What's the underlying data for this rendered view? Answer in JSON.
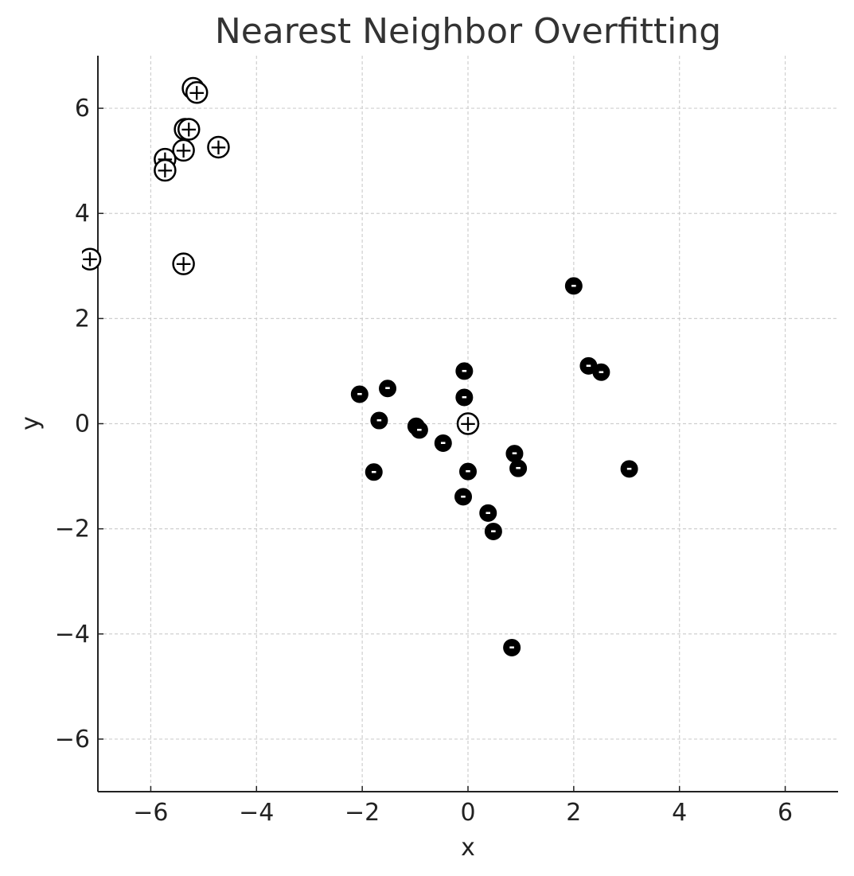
{
  "chart_data": {
    "type": "scatter",
    "title": "Nearest Neighbor Overfitting",
    "xlabel": "x",
    "ylabel": "y",
    "xlim": [
      -7,
      7
    ],
    "ylim": [
      -7,
      7
    ],
    "grid": true,
    "x_ticks": [
      -6,
      -4,
      -2,
      0,
      2,
      4,
      6
    ],
    "y_ticks": [
      -6,
      -4,
      -2,
      0,
      2,
      4,
      6
    ],
    "x_tick_labels": [
      "−6",
      "−4",
      "−2",
      "0",
      "2",
      "4",
      "6"
    ],
    "y_tick_labels": [
      "−6",
      "−4",
      "−2",
      "0",
      "2",
      "4",
      "6"
    ],
    "series": [
      {
        "name": "positive",
        "marker_text": "+",
        "marker_style": "open-circle",
        "points": [
          {
            "x": -5.2,
            "y": 6.38
          },
          {
            "x": -5.13,
            "y": 6.3
          },
          {
            "x": -5.35,
            "y": 5.6
          },
          {
            "x": -5.28,
            "y": 5.6
          },
          {
            "x": -4.72,
            "y": 5.26
          },
          {
            "x": -5.38,
            "y": 5.2
          },
          {
            "x": -5.73,
            "y": 5.03
          },
          {
            "x": -5.73,
            "y": 4.82
          },
          {
            "x": -5.38,
            "y": 3.04
          },
          {
            "x": -7.15,
            "y": 3.13
          },
          {
            "x": 0.0,
            "y": 0.0
          }
        ]
      },
      {
        "name": "negative",
        "marker_text": "-",
        "marker_style": "filled-circle",
        "points": [
          {
            "x": 2.0,
            "y": 2.62
          },
          {
            "x": 2.28,
            "y": 1.1
          },
          {
            "x": 2.52,
            "y": 0.98
          },
          {
            "x": -0.07,
            "y": 1.0
          },
          {
            "x": -0.07,
            "y": 0.5
          },
          {
            "x": -2.05,
            "y": 0.56
          },
          {
            "x": -1.52,
            "y": 0.67
          },
          {
            "x": -1.68,
            "y": 0.06
          },
          {
            "x": -0.98,
            "y": -0.05
          },
          {
            "x": -0.92,
            "y": -0.12
          },
          {
            "x": -0.47,
            "y": -0.37
          },
          {
            "x": 0.88,
            "y": -0.57
          },
          {
            "x": 0.95,
            "y": -0.85
          },
          {
            "x": 3.05,
            "y": -0.86
          },
          {
            "x": 0.0,
            "y": -0.91
          },
          {
            "x": -1.78,
            "y": -0.92
          },
          {
            "x": -0.09,
            "y": -1.39
          },
          {
            "x": 0.38,
            "y": -1.7
          },
          {
            "x": 0.48,
            "y": -2.05
          },
          {
            "x": 0.83,
            "y": -4.26
          }
        ]
      }
    ]
  }
}
